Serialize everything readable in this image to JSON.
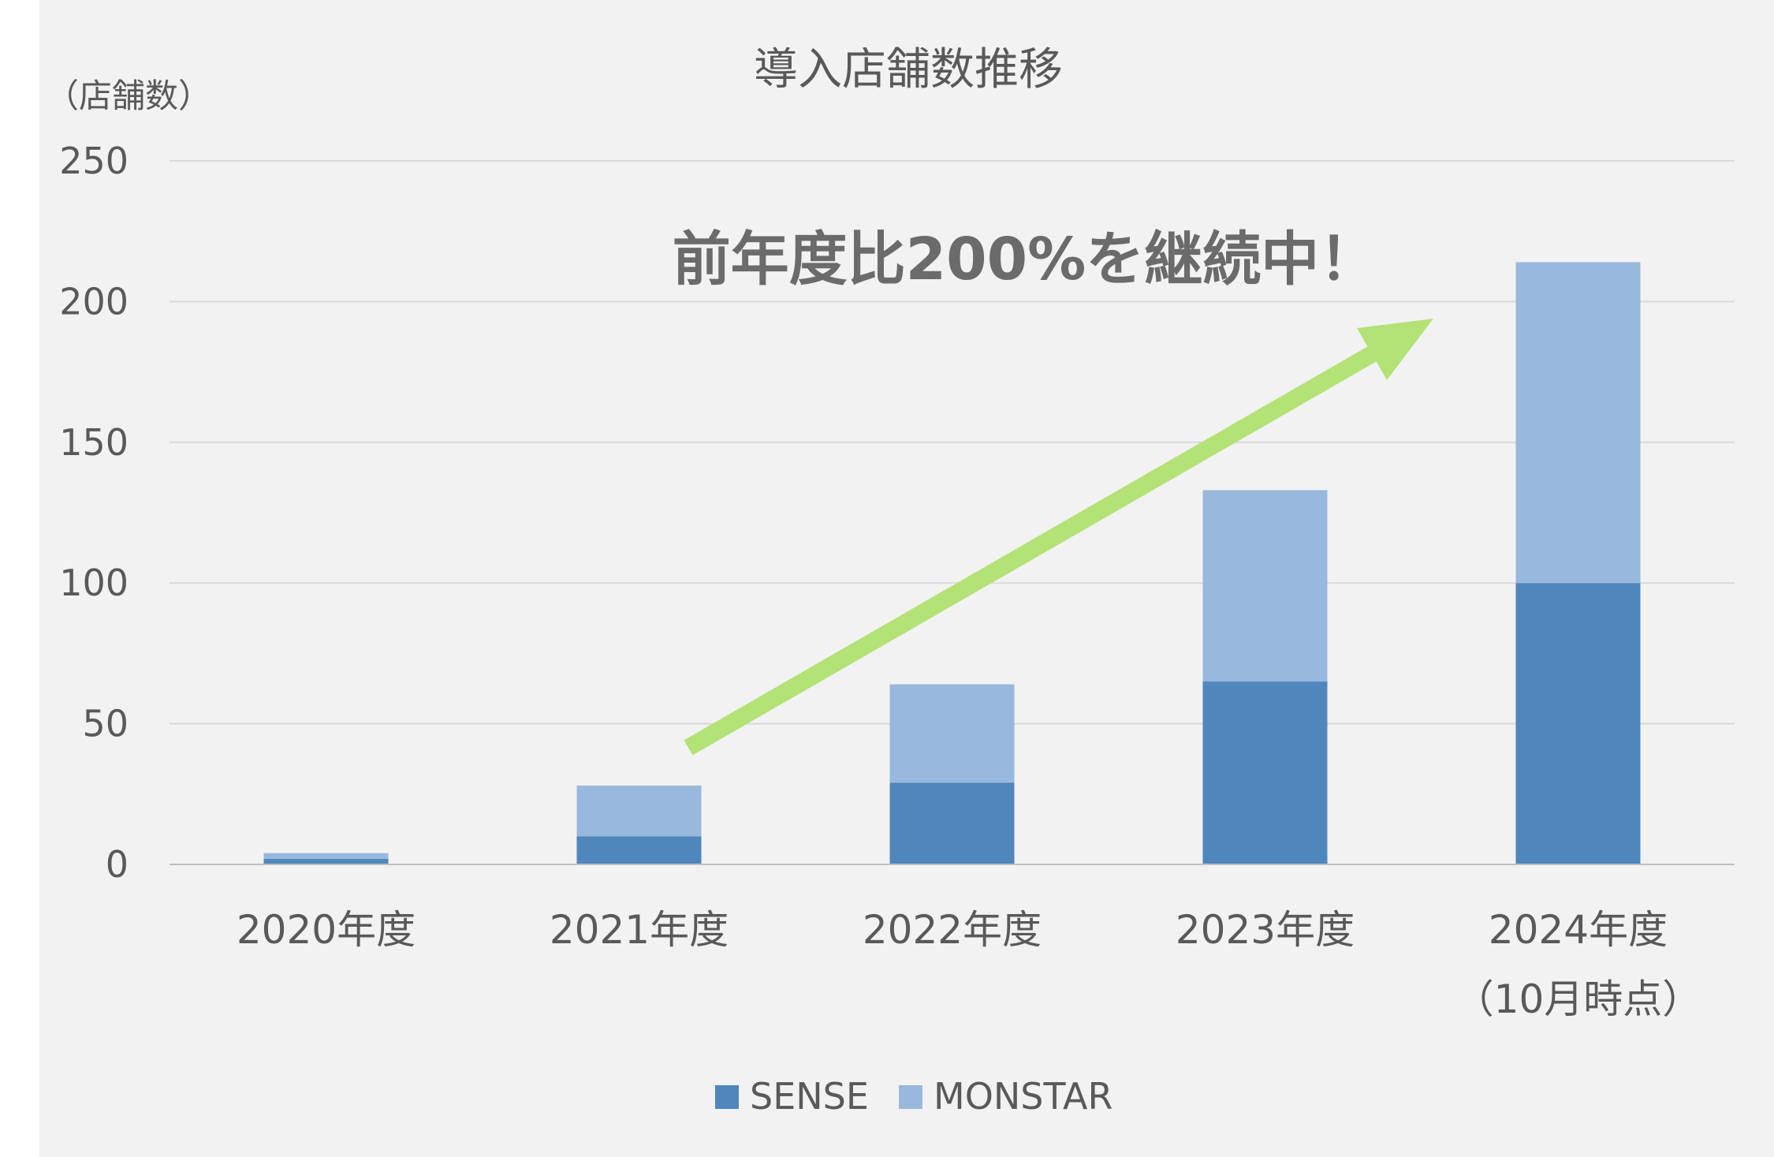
{
  "chart_data": {
    "type": "bar",
    "stacked": true,
    "title": "導入店舗数推移",
    "ylabel": "（店舗数）",
    "xlabel": "",
    "ylim": [
      0,
      250
    ],
    "yticks": [
      0,
      50,
      100,
      150,
      200,
      250
    ],
    "grid": true,
    "legend_position": "bottom",
    "categories": [
      [
        "2020年度"
      ],
      [
        "2021年度"
      ],
      [
        "2022年度"
      ],
      [
        "2023年度"
      ],
      [
        "2024年度",
        "（10月時点）"
      ]
    ],
    "series": [
      {
        "name": "SENSE",
        "color": "#4f86bb",
        "values": [
          2,
          10,
          29,
          65,
          100
        ]
      },
      {
        "name": "MONSTAR",
        "color": "#99b8de",
        "values": [
          2,
          18,
          35,
          68,
          114
        ]
      }
    ],
    "annotation": {
      "text": "前年度比200%を継続中！",
      "arrow_color": "#b3e276"
    }
  }
}
